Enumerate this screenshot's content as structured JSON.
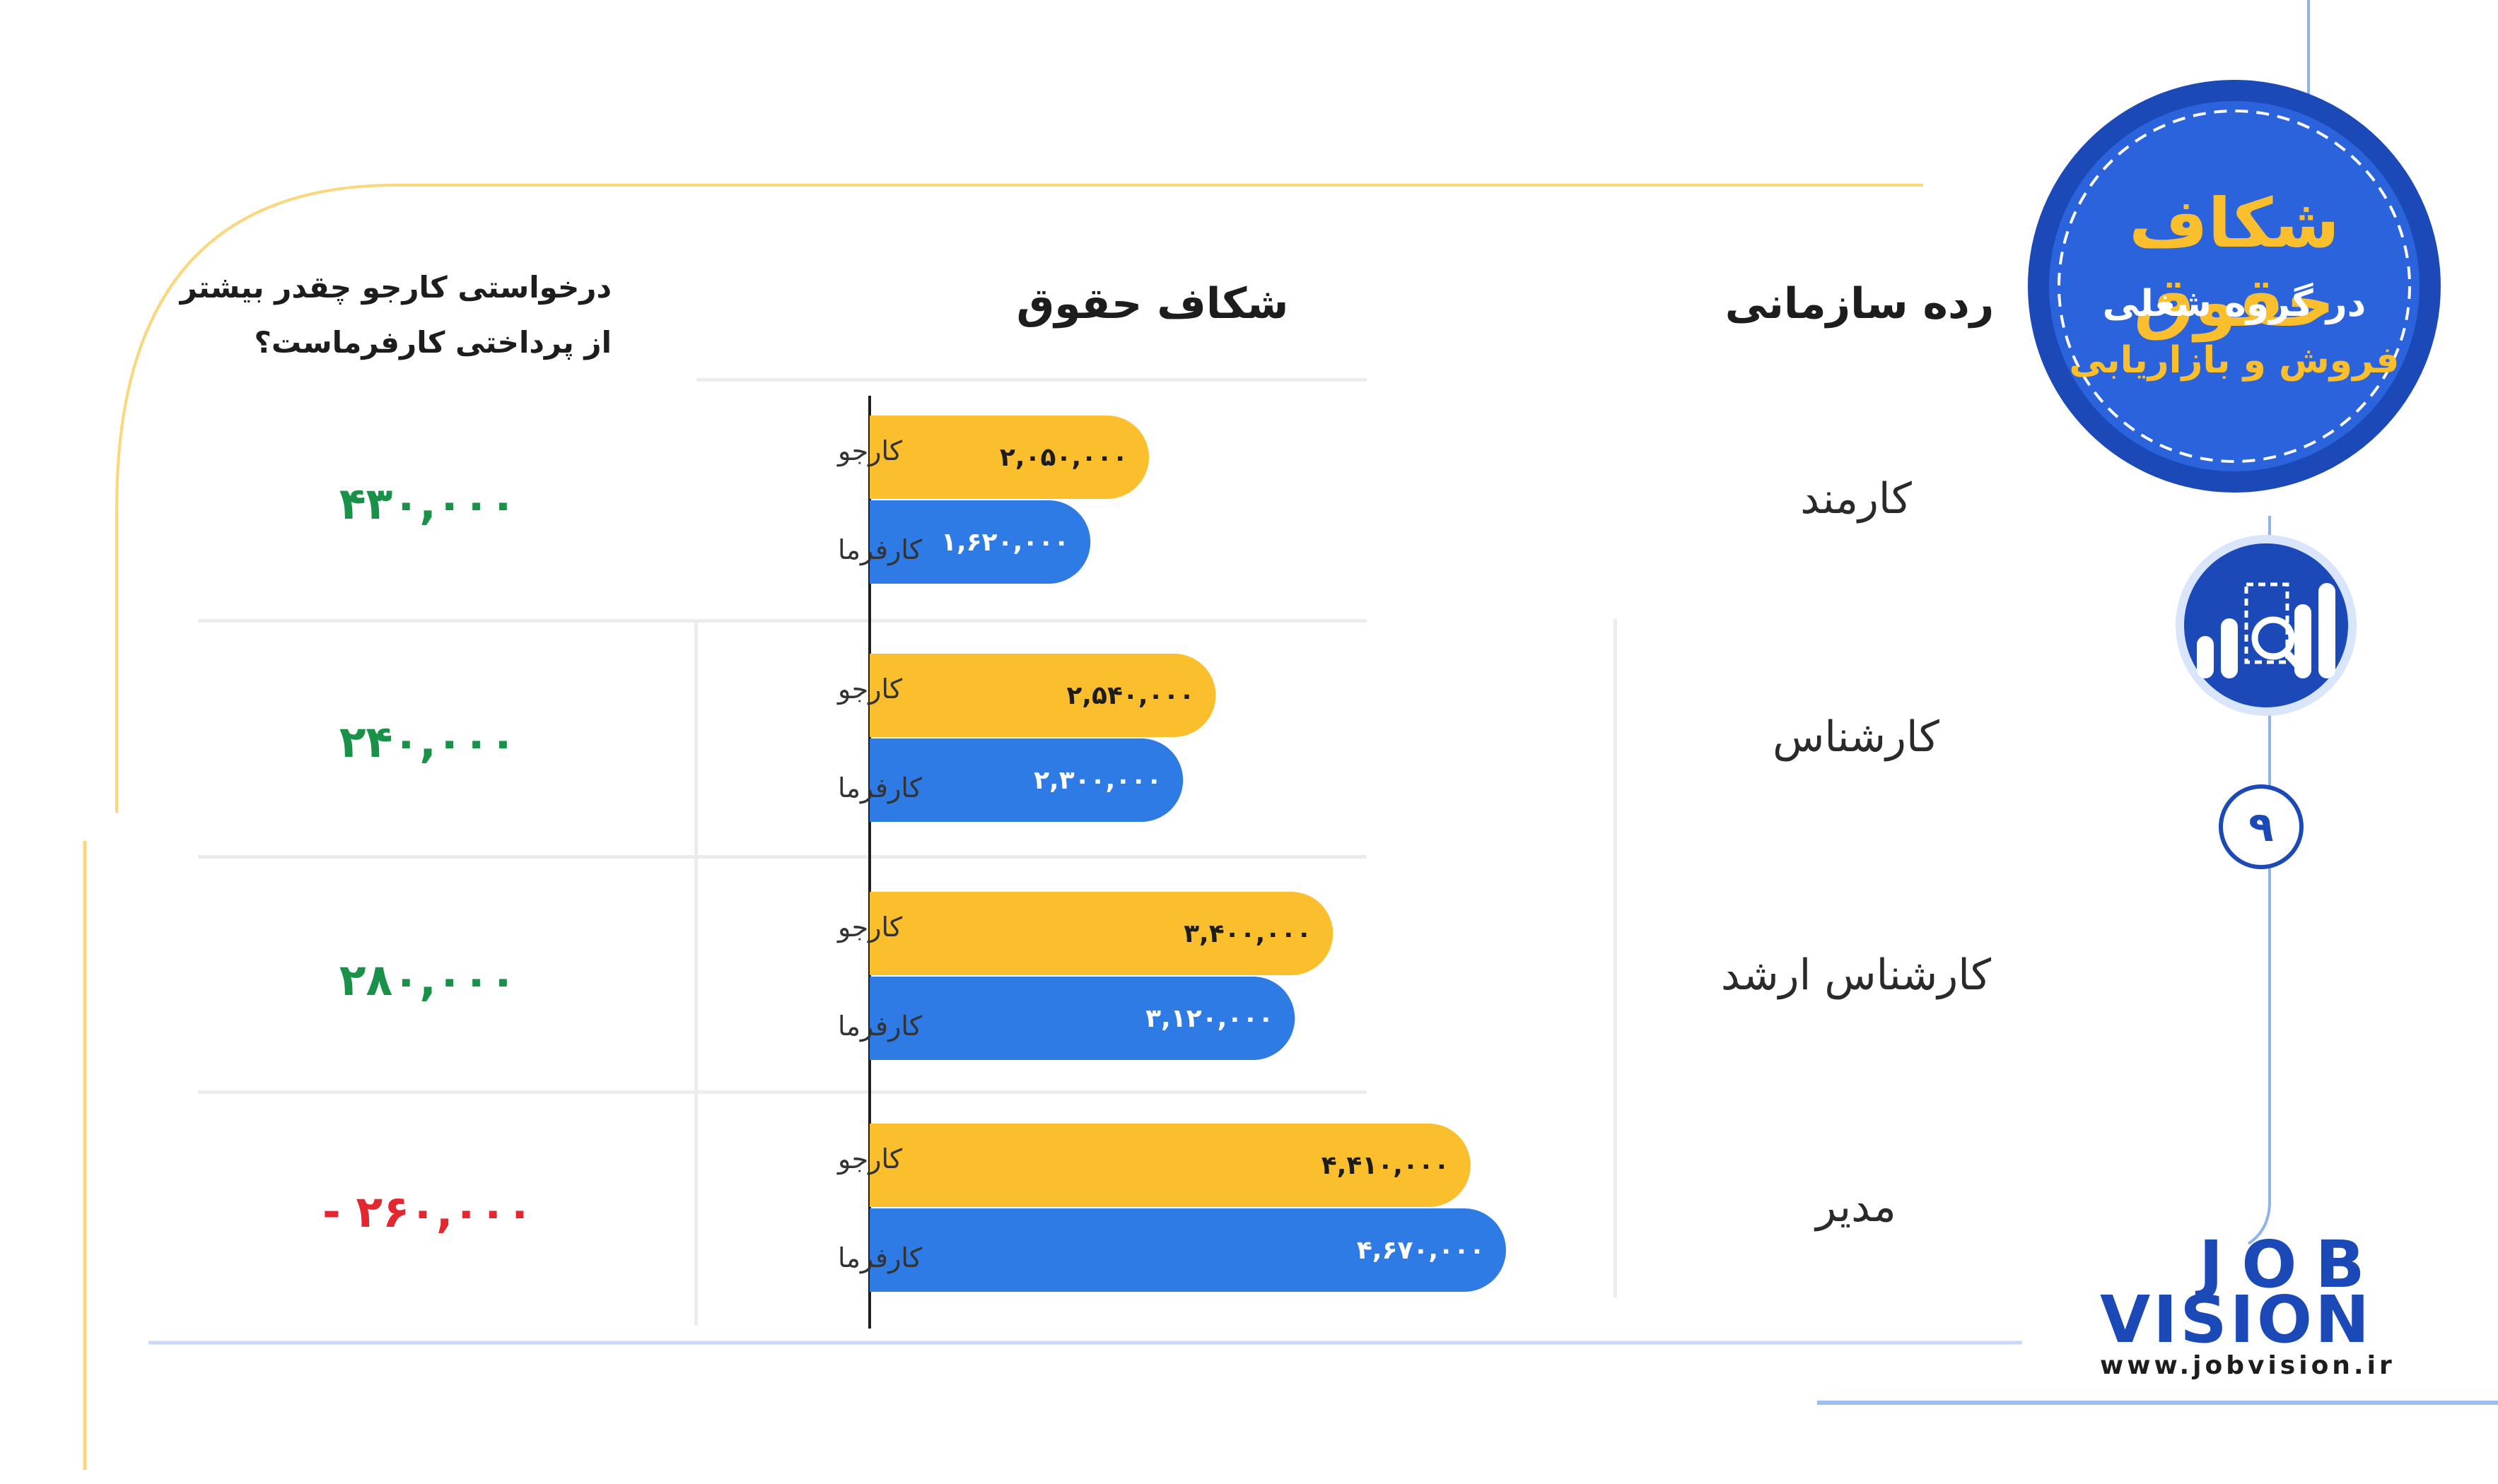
{
  "header": {
    "level_col": "رده سازمانی",
    "gap_col": "شکاف حقوق",
    "question_line1": "درخواستی کارجو چقدر بیشتر",
    "question_line2": "از پرداختی کارفرماست؟"
  },
  "badge": {
    "title": "شکاف حقوق",
    "line1": "در گروه شغلی",
    "line2": "فروش و بازاریابی"
  },
  "page_number": "۹",
  "brand": {
    "logo_line1": "JOB",
    "logo_line2": "VISION",
    "website": "www.jobvision.ir"
  },
  "colors": {
    "jobseeker": "#fbbf2d",
    "employer": "#2f7be6",
    "positive": "#1a9148",
    "negative": "#e3262f",
    "badge": "#1c49b8"
  },
  "chart_data": {
    "type": "bar",
    "orientation": "horizontal",
    "categories": [
      "کارمند",
      "کارشناس",
      "کارشناس ارشد",
      "مدیر"
    ],
    "series": [
      {
        "name": "کارجو",
        "values": [
          2050000,
          2540000,
          3400000,
          4410000
        ],
        "labels": [
          "۲,۰۵۰,۰۰۰",
          "۲,۵۴۰,۰۰۰",
          "۳,۴۰۰,۰۰۰",
          "۴,۴۱۰,۰۰۰"
        ]
      },
      {
        "name": "کارفرما",
        "values": [
          1620000,
          2300000,
          3120000,
          4670000
        ],
        "labels": [
          "۱,۶۲۰,۰۰۰",
          "۲,۳۰۰,۰۰۰",
          "۳,۱۲۰,۰۰۰",
          "۴,۶۷۰,۰۰۰"
        ]
      }
    ],
    "difference": {
      "values": [
        430000,
        240000,
        280000,
        -260000
      ],
      "labels": [
        "۴۳۰,۰۰۰",
        "۲۴۰,۰۰۰",
        "۲۸۰,۰۰۰",
        "- ۲۶۰,۰۰۰"
      ]
    },
    "xlim": [
      0,
      4670000
    ]
  }
}
